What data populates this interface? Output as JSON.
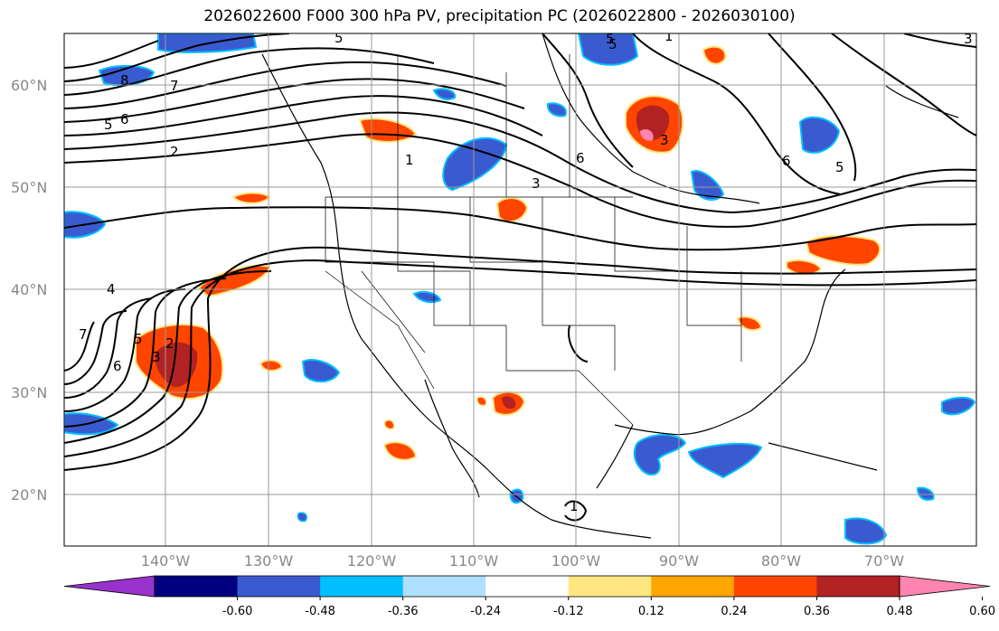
{
  "title": "2026022600 F000 300 hPa PV, precipitation PC (2026022800 - 2026030100)",
  "lat_labels": [
    "60°N",
    "50°N",
    "40°N",
    "30°N",
    "20°N"
  ],
  "lon_labels": [
    "140°W",
    "130°W",
    "120°W",
    "110°W",
    "100°W",
    "90°W",
    "80°W",
    "70°W"
  ],
  "colorbar": {
    "labels": [
      "-0.60",
      "-0.48",
      "-0.36",
      "-0.24",
      "-0.12",
      "0.12",
      "0.24",
      "0.36",
      "0.48",
      "0.60"
    ],
    "colors": [
      "#9932cc",
      "#000080",
      "#3a5bd0",
      "#00bfff",
      "#b0e0ff",
      "#ffffff",
      "#ffe680",
      "#ffa500",
      "#ff4500",
      "#b22222",
      "#ff85b0"
    ]
  },
  "contour_labels": [
    "8",
    "7",
    "5",
    "6",
    "5",
    "2",
    "1",
    "3",
    "5",
    "1",
    "6",
    "5",
    "3",
    "4",
    "7",
    "5",
    "6",
    "3",
    "2",
    "1",
    "6",
    "5",
    "3"
  ],
  "colors": {
    "land_line": "#000000",
    "grid": "#999999"
  }
}
